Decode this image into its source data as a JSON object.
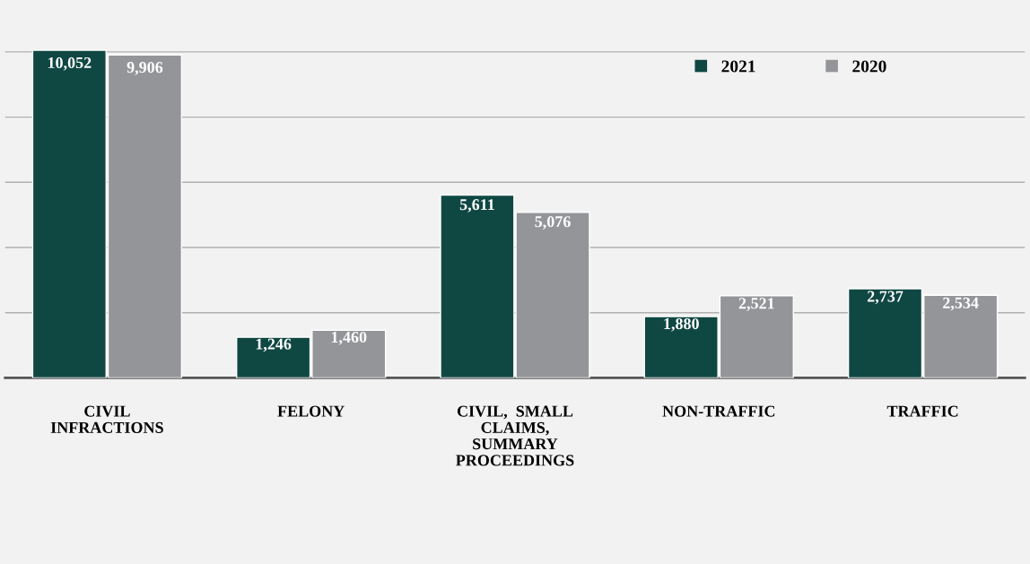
{
  "chart_data": {
    "type": "bar",
    "categories": [
      "CIVIL\nINFRACTIONS",
      "FELONY",
      "CIVIL,  SMALL\nCLAIMS,\nSUMMARY\nPROCEEDINGS",
      "NON-TRAFFIC",
      "TRAFFIC"
    ],
    "series": [
      {
        "name": "2021",
        "color": "#0f4743",
        "values": [
          10052,
          1246,
          5611,
          1880,
          2737
        ],
        "value_labels": [
          "10,052",
          "1,246",
          "5,611",
          "1,880",
          "2,737"
        ]
      },
      {
        "name": "2020",
        "color": "#939598",
        "values": [
          9906,
          1460,
          5076,
          2521,
          2534
        ],
        "value_labels": [
          "9,906",
          "1,460",
          "5,076",
          "2,521",
          "2,534"
        ]
      }
    ],
    "grid": "y",
    "legend": "top right"
  }
}
